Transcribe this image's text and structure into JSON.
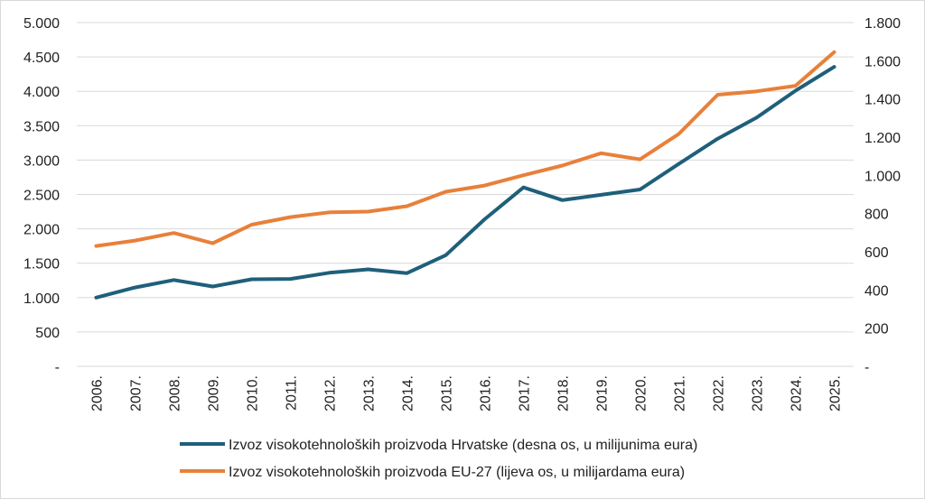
{
  "chart_data": {
    "type": "line",
    "categories": [
      "2006.",
      "2007.",
      "2008.",
      "2009.",
      "2010.",
      "2011.",
      "2012.",
      "2013.",
      "2014.",
      "2015.",
      "2016.",
      "2017.",
      "2018.",
      "2019.",
      "2020.",
      "2021.",
      "2022.",
      "2023.",
      "2024.",
      "2025."
    ],
    "left_axis": {
      "min": 0,
      "max": 5000,
      "step": 500,
      "tick_labels": [
        "-",
        "500",
        "1.000",
        "1.500",
        "2.000",
        "2.500",
        "3.000",
        "3.500",
        "4.000",
        "4.500",
        "5.000"
      ]
    },
    "right_axis": {
      "min": 0,
      "max": 1800,
      "step": 200,
      "tick_labels": [
        "-",
        "200",
        "400",
        "600",
        "800",
        "1.000",
        "1.200",
        "1.400",
        "1.600",
        "1.800"
      ]
    },
    "grid": true,
    "legend_position": "bottom",
    "series": [
      {
        "name": "Izvoz visokotehnoloških proizvoda Hrvatske (desna os, u milijunima eura)",
        "axis": "right",
        "color": "#1f5f7a",
        "values": [
          360,
          413,
          452,
          418,
          456,
          458,
          490,
          508,
          488,
          582,
          770,
          937,
          870,
          898,
          926,
          1060,
          1192,
          1302,
          1443,
          1568
        ]
      },
      {
        "name": "Izvoz visokotehnoloških proizvoda EU-27 (lijeva os, u milijardama eura)",
        "axis": "left",
        "color": "#e8803a",
        "values": [
          1750,
          1830,
          1940,
          1790,
          2060,
          2170,
          2240,
          2250,
          2330,
          2540,
          2630,
          2780,
          2920,
          3100,
          3010,
          3380,
          3950,
          4000,
          4080,
          4570
        ]
      }
    ]
  }
}
